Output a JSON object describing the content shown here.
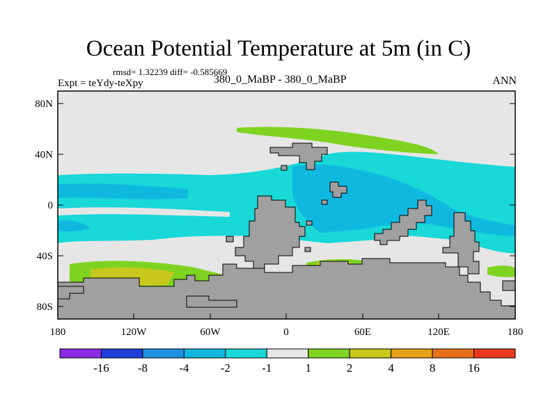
{
  "title": "Ocean Potential Temperature at 5m (in C)",
  "stats": "rmsd= 1.32239 diff= -0.585669",
  "experiment": "Expt = teYdy-teXpy",
  "case_label": "380_0_MaBP - 380_0_MaBP",
  "season": "ANN",
  "x_ticks": [
    "180",
    "120W",
    "60W",
    "0",
    "60E",
    "120E",
    "180"
  ],
  "y_ticks": [
    "80N",
    "40N",
    "0",
    "40S",
    "80S"
  ],
  "colorbar": {
    "colors": [
      "#8a2be2",
      "#1f3fd8",
      "#1f8fe0",
      "#10b8e0",
      "#18d8d8",
      "#e6e6e6",
      "#7ed321",
      "#c8c81e",
      "#e6a019",
      "#e8701a",
      "#e83a1a"
    ],
    "labels": [
      "-16",
      "-8",
      "-4",
      "-2",
      "-1",
      "1",
      "2",
      "4",
      "8",
      "16"
    ]
  },
  "colors": {
    "land": "#a0a0a0",
    "neutral": "#e6e6e6",
    "cyan": "#18d8d8",
    "blue": "#10b8e0",
    "green": "#7ed321",
    "yellow": "#c8c81e"
  }
}
